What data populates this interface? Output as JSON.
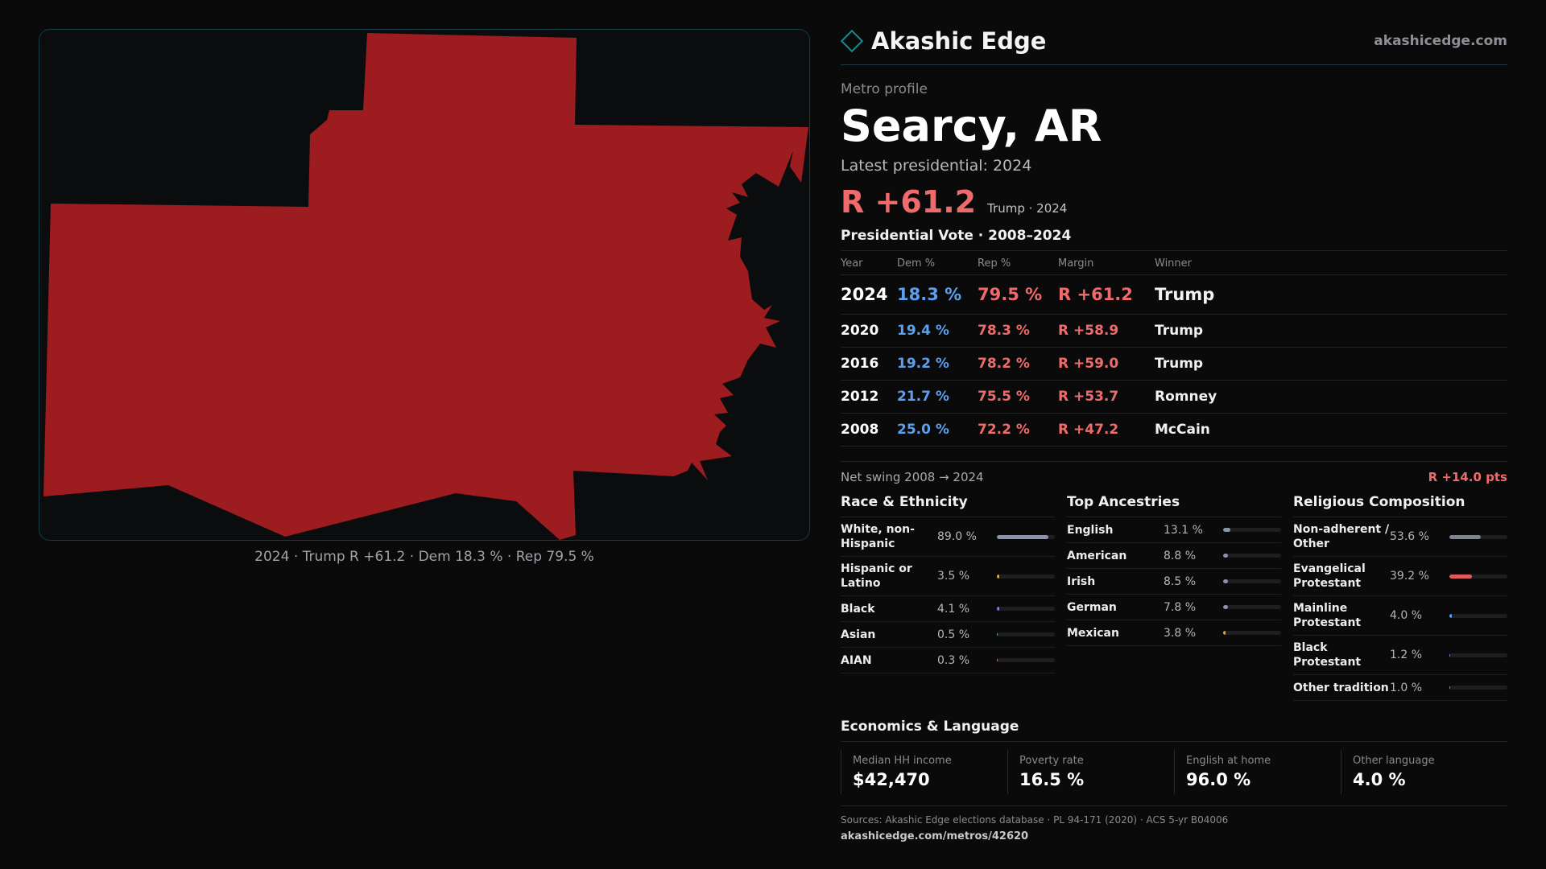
{
  "map": {
    "caption": "2024 · Trump R +61.2 · Dem 18.3 % · Rep 79.5 %",
    "fill_color": "#9c1c1f"
  },
  "brand": {
    "name": "Akashic Edge",
    "url": "akashicedge.com"
  },
  "profile": {
    "kicker": "Metro profile",
    "metro": "Searcy, AR",
    "latest": "Latest presidential: 2024",
    "margin": "R +61.2",
    "margin_sub": "Trump · 2024"
  },
  "presidential": {
    "title": "Presidential Vote · 2008–2024",
    "headers": {
      "year": "Year",
      "dem": "Dem %",
      "rep": "Rep %",
      "margin": "Margin",
      "winner": "Winner"
    },
    "rows": [
      {
        "year": "2024",
        "dem": "18.3 %",
        "rep": "79.5 %",
        "margin": "R +61.2",
        "winner": "Trump"
      },
      {
        "year": "2020",
        "dem": "19.4 %",
        "rep": "78.3 %",
        "margin": "R +58.9",
        "winner": "Trump"
      },
      {
        "year": "2016",
        "dem": "19.2 %",
        "rep": "78.2 %",
        "margin": "R +59.0",
        "winner": "Trump"
      },
      {
        "year": "2012",
        "dem": "21.7 %",
        "rep": "75.5 %",
        "margin": "R +53.7",
        "winner": "Romney"
      },
      {
        "year": "2008",
        "dem": "25.0 %",
        "rep": "72.2 %",
        "margin": "R +47.2",
        "winner": "McCain"
      }
    ],
    "swing_label": "Net swing 2008 → 2024",
    "swing_value": "R +14.0 pts"
  },
  "race": {
    "title": "Race & Ethnicity",
    "items": [
      {
        "label": "White, non-Hispanic",
        "value": "89.0 %",
        "pct": 89.0,
        "color": "#8a94a8"
      },
      {
        "label": "Hispanic or Latino",
        "value": "3.5 %",
        "pct": 3.5,
        "color": "#e0a43a"
      },
      {
        "label": "Black",
        "value": "4.1 %",
        "pct": 4.1,
        "color": "#8a7be0"
      },
      {
        "label": "Asian",
        "value": "0.5 %",
        "pct": 0.5,
        "color": "#4fb0a0"
      },
      {
        "label": "AIAN",
        "value": "0.3 %",
        "pct": 0.3,
        "color": "#d07a3a"
      }
    ]
  },
  "ancestry": {
    "title": "Top Ancestries",
    "items": [
      {
        "label": "English",
        "value": "13.1 %",
        "pct": 13.1,
        "color": "#8a94a8"
      },
      {
        "label": "American",
        "value": "8.8 %",
        "pct": 8.8,
        "color": "#8a94a8"
      },
      {
        "label": "Irish",
        "value": "8.5 %",
        "pct": 8.5,
        "color": "#8a94a8"
      },
      {
        "label": "German",
        "value": "7.8 %",
        "pct": 7.8,
        "color": "#8a94a8"
      },
      {
        "label": "Mexican",
        "value": "3.8 %",
        "pct": 3.8,
        "color": "#e0a43a"
      }
    ]
  },
  "religion": {
    "title": "Religious Composition",
    "items": [
      {
        "label": "Non-adherent / Other",
        "value": "53.6 %",
        "pct": 53.6,
        "color": "#7c8494"
      },
      {
        "label": "Evangelical Protestant",
        "value": "39.2 %",
        "pct": 39.2,
        "color": "#e05a5a"
      },
      {
        "label": "Mainline Protestant",
        "value": "4.0 %",
        "pct": 4.0,
        "color": "#5aa0ee"
      },
      {
        "label": "Black Protestant",
        "value": "1.2 %",
        "pct": 1.2,
        "color": "#8a7be0"
      },
      {
        "label": "Other tradition",
        "value": "1.0 %",
        "pct": 1.0,
        "color": "#8a94a8"
      }
    ]
  },
  "economics": {
    "title": "Economics & Language",
    "items": [
      {
        "label": "Median HH income",
        "value": "$42,470"
      },
      {
        "label": "Poverty rate",
        "value": "16.5 %"
      },
      {
        "label": "English at home",
        "value": "96.0 %"
      },
      {
        "label": "Other language",
        "value": "4.0 %"
      }
    ]
  },
  "sources": {
    "text": "Sources: Akashic Edge elections database · PL 94-171 (2020) · ACS 5-yr B04006",
    "url": "akashicedge.com/metros/42620"
  }
}
